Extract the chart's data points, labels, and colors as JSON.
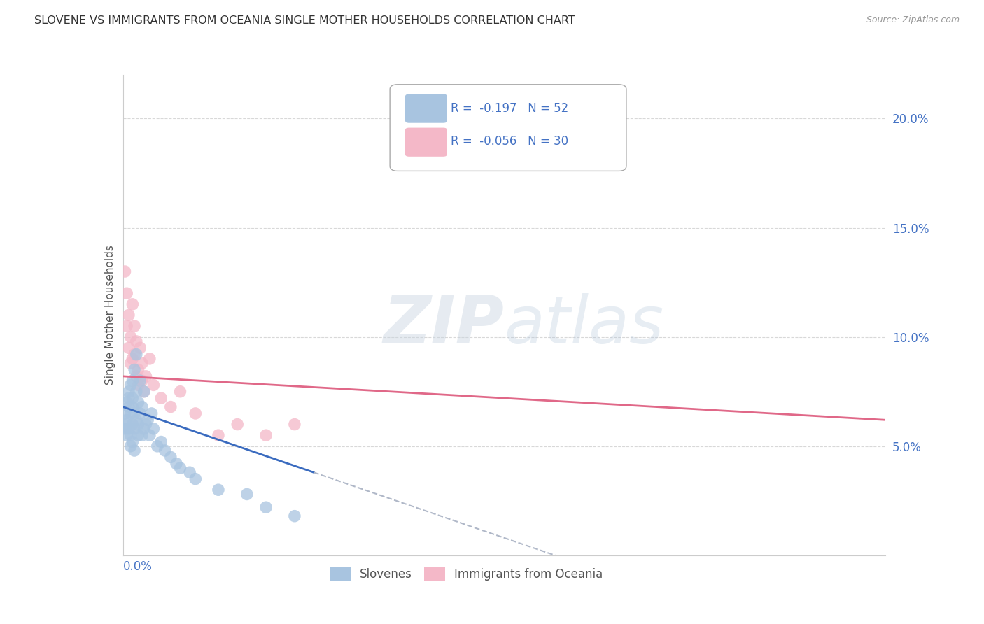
{
  "title": "SLOVENE VS IMMIGRANTS FROM OCEANIA SINGLE MOTHER HOUSEHOLDS CORRELATION CHART",
  "source": "Source: ZipAtlas.com",
  "ylabel": "Single Mother Households",
  "right_yticks": [
    "20.0%",
    "15.0%",
    "10.0%",
    "5.0%"
  ],
  "right_ytick_vals": [
    0.2,
    0.15,
    0.1,
    0.05
  ],
  "xlim": [
    0.0,
    0.4
  ],
  "ylim": [
    0.0,
    0.22
  ],
  "watermark": "ZIPatlas",
  "background_color": "#ffffff",
  "grid_color": "#d8d8d8",
  "slovenes_x": [
    0.001,
    0.001,
    0.002,
    0.002,
    0.002,
    0.002,
    0.003,
    0.003,
    0.003,
    0.003,
    0.004,
    0.004,
    0.004,
    0.004,
    0.005,
    0.005,
    0.005,
    0.005,
    0.005,
    0.006,
    0.006,
    0.006,
    0.006,
    0.007,
    0.007,
    0.007,
    0.008,
    0.008,
    0.008,
    0.009,
    0.009,
    0.01,
    0.01,
    0.011,
    0.011,
    0.012,
    0.013,
    0.014,
    0.015,
    0.016,
    0.018,
    0.02,
    0.022,
    0.025,
    0.028,
    0.03,
    0.035,
    0.038,
    0.05,
    0.065,
    0.075,
    0.09
  ],
  "slovenes_y": [
    0.065,
    0.058,
    0.07,
    0.062,
    0.055,
    0.06,
    0.072,
    0.068,
    0.058,
    0.075,
    0.065,
    0.078,
    0.055,
    0.05,
    0.08,
    0.068,
    0.06,
    0.052,
    0.072,
    0.085,
    0.065,
    0.058,
    0.048,
    0.075,
    0.092,
    0.062,
    0.07,
    0.055,
    0.06,
    0.08,
    0.065,
    0.068,
    0.055,
    0.075,
    0.058,
    0.06,
    0.062,
    0.055,
    0.065,
    0.058,
    0.05,
    0.052,
    0.048,
    0.045,
    0.042,
    0.04,
    0.038,
    0.035,
    0.03,
    0.028,
    0.022,
    0.018
  ],
  "oceania_x": [
    0.001,
    0.002,
    0.002,
    0.003,
    0.003,
    0.004,
    0.004,
    0.005,
    0.005,
    0.006,
    0.006,
    0.007,
    0.007,
    0.008,
    0.008,
    0.009,
    0.01,
    0.01,
    0.011,
    0.012,
    0.014,
    0.016,
    0.02,
    0.025,
    0.03,
    0.038,
    0.05,
    0.06,
    0.075,
    0.09
  ],
  "oceania_y": [
    0.13,
    0.12,
    0.105,
    0.11,
    0.095,
    0.1,
    0.088,
    0.115,
    0.09,
    0.092,
    0.105,
    0.082,
    0.098,
    0.085,
    0.078,
    0.095,
    0.08,
    0.088,
    0.075,
    0.082,
    0.09,
    0.078,
    0.072,
    0.068,
    0.075,
    0.065,
    0.055,
    0.06,
    0.055,
    0.06
  ],
  "slovenes_color": "#a8c4e0",
  "oceania_color": "#f4b8c8",
  "slovenes_line_color": "#3a6bbf",
  "oceania_line_color": "#e06888",
  "dash_line_color": "#b0b8c8",
  "slope_s": -0.197,
  "slope_o": -0.056,
  "n_s": 52,
  "n_o": 30,
  "s_intercept": 0.068,
  "s_slope": -0.3,
  "o_intercept": 0.082,
  "o_slope": -0.05
}
